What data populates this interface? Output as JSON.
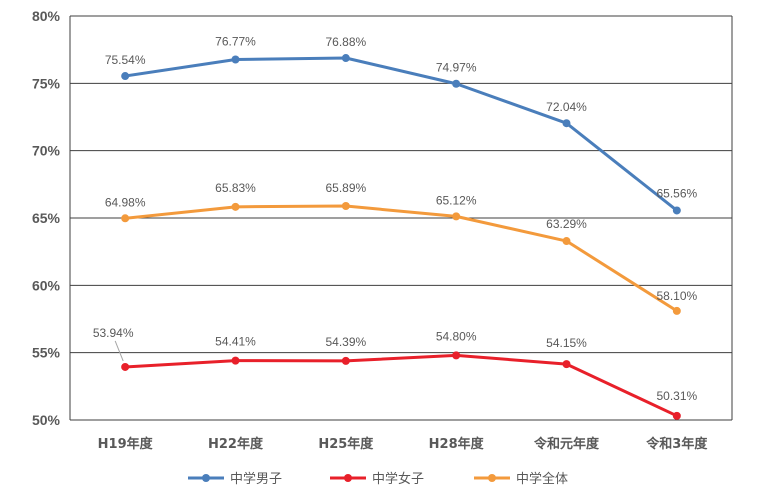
{
  "chart_data": {
    "type": "line",
    "title": "",
    "xlabel": "",
    "ylabel": "",
    "categories": [
      "H19年度",
      "H22年度",
      "H25年度",
      "H28年度",
      "令和元年度",
      "令和3年度"
    ],
    "ylim": [
      50,
      80
    ],
    "yticks": [
      "50%",
      "55%",
      "60%",
      "65%",
      "70%",
      "75%",
      "80%"
    ],
    "grid": true,
    "legend_position": "bottom",
    "series": [
      {
        "name": "中学男子",
        "color": "#4a7ebb",
        "values": [
          75.54,
          76.77,
          76.88,
          74.97,
          72.04,
          65.56
        ],
        "labels": [
          "75.54%",
          "76.77%",
          "76.88%",
          "74.97%",
          "72.04%",
          "65.56%"
        ]
      },
      {
        "name": "中学女子",
        "color": "#e8202a",
        "values": [
          53.94,
          54.41,
          54.39,
          54.8,
          54.15,
          50.31
        ],
        "labels": [
          "53.94%",
          "54.41%",
          "54.39%",
          "54.80%",
          "54.15%",
          "50.31%"
        ]
      },
      {
        "name": "中学全体",
        "color": "#f39a3c",
        "values": [
          64.98,
          65.83,
          65.89,
          65.12,
          63.29,
          58.1
        ],
        "labels": [
          "64.98%",
          "65.83%",
          "65.89%",
          "65.12%",
          "63.29%",
          "58.10%"
        ]
      }
    ]
  }
}
